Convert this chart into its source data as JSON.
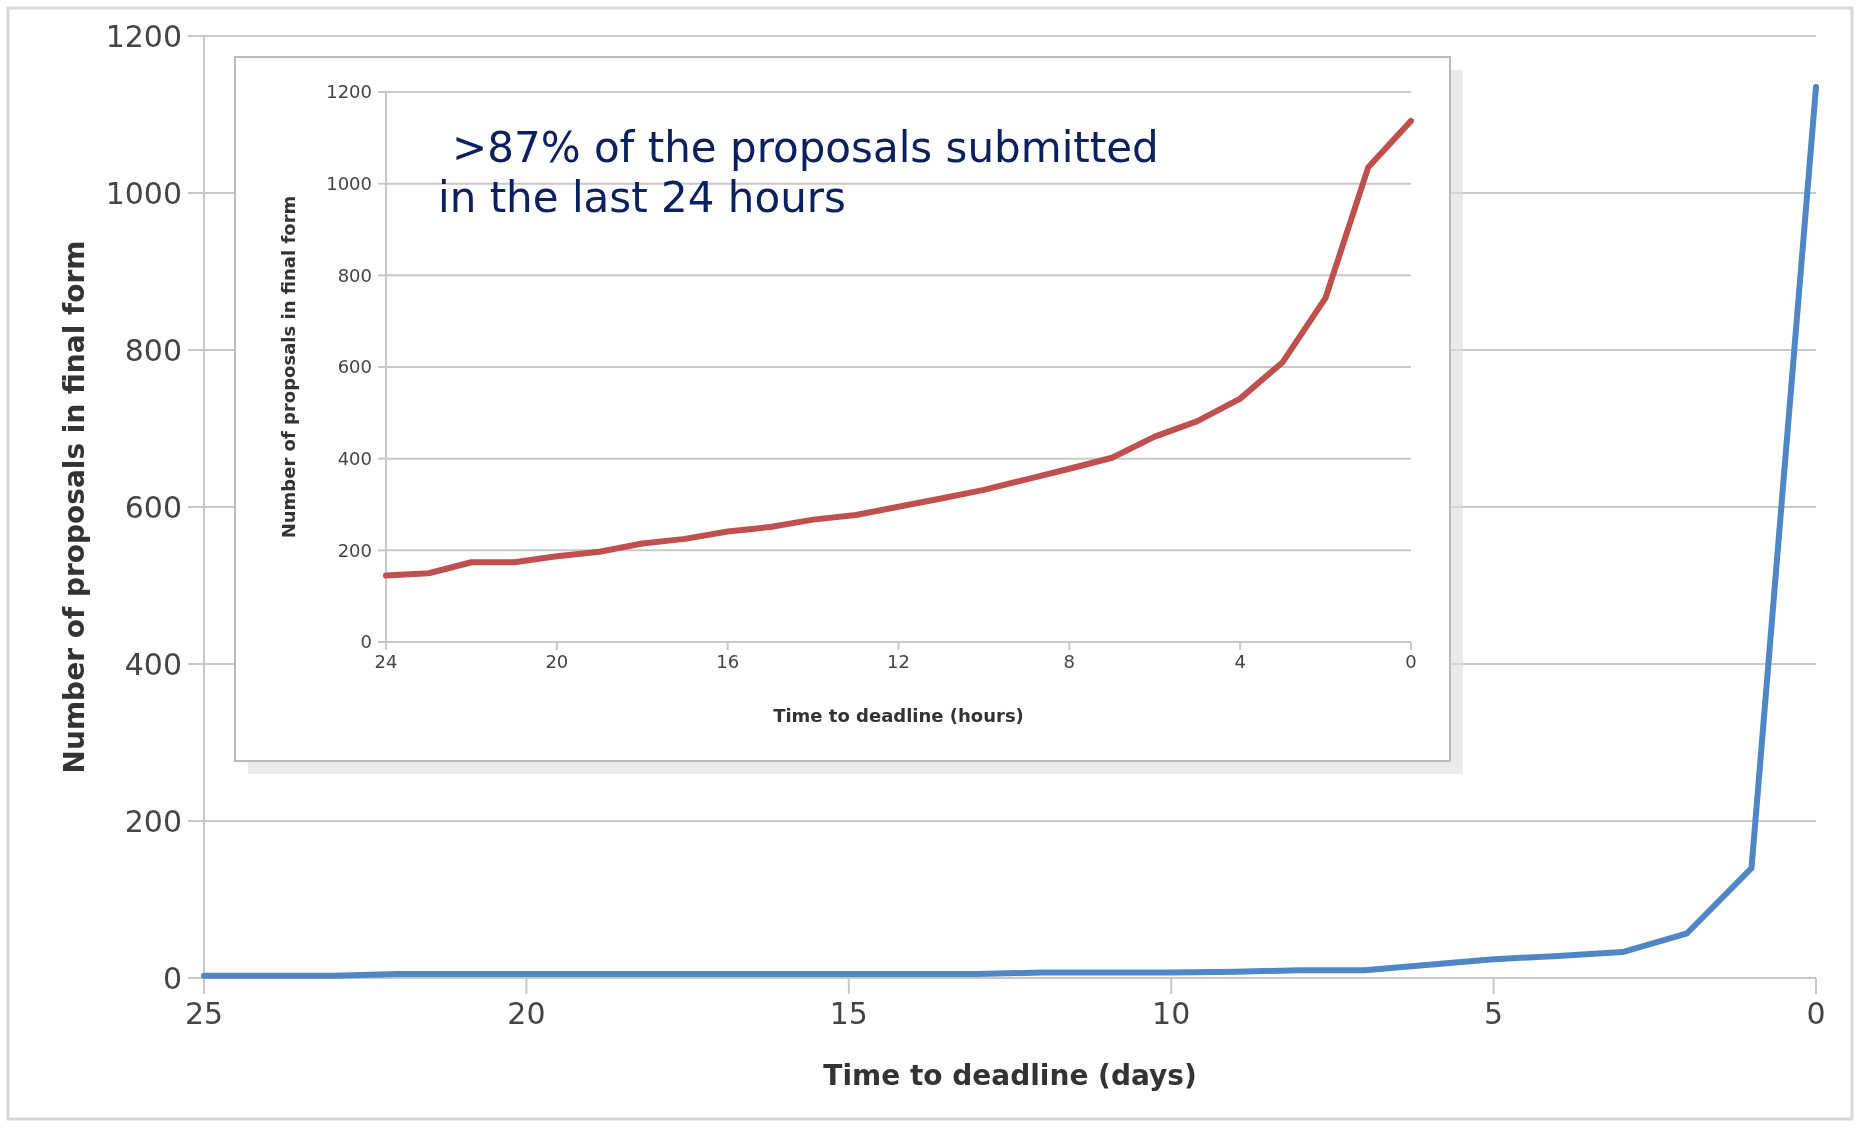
{
  "chart_data": [
    {
      "type": "line",
      "xlabel": "Time to deadline (days)",
      "ylabel": "Number of proposals in final form",
      "x": [
        25,
        24,
        23,
        22,
        21,
        20,
        19,
        18,
        17,
        16,
        15,
        14,
        13,
        12,
        11,
        10,
        9,
        8,
        7,
        6,
        5,
        4,
        3,
        2,
        1,
        0
      ],
      "xlim": [
        25,
        0
      ],
      "xticks": [
        25,
        20,
        15,
        10,
        5,
        0
      ],
      "ylim": [
        0,
        1200
      ],
      "yticks": [
        0,
        200,
        400,
        600,
        800,
        1000,
        1200
      ],
      "grid": "y",
      "series": [
        {
          "color": "#4f86c6",
          "values": [
            3,
            3,
            3,
            5,
            5,
            5,
            5,
            5,
            5,
            5,
            5,
            5,
            5,
            7,
            7,
            7,
            8,
            10,
            10,
            17,
            24,
            28,
            33,
            57,
            140,
            1135
          ]
        }
      ]
    },
    {
      "type": "line",
      "xlabel": "Time to deadline (hours)",
      "ylabel": "Number of proposals in final form",
      "x": [
        24,
        23,
        22,
        21,
        20,
        19,
        18,
        17,
        16,
        15,
        14,
        13,
        12,
        11,
        10,
        9,
        8,
        7,
        6,
        5,
        4,
        3,
        2,
        1,
        0
      ],
      "xlim": [
        24,
        0
      ],
      "xticks": [
        24,
        20,
        16,
        12,
        8,
        4,
        0
      ],
      "ylim": [
        0,
        1200
      ],
      "yticks": [
        0,
        200,
        400,
        600,
        800,
        1000,
        1200
      ],
      "grid": "y",
      "annotations": [
        ">87% of the proposals submitted\nin the last 24 hours"
      ],
      "series": [
        {
          "color": "#c0504d",
          "values": [
            145,
            150,
            174,
            174,
            187,
            197,
            215,
            225,
            241,
            251,
            267,
            277,
            295,
            313,
            332,
            355,
            378,
            402,
            448,
            482,
            531,
            611,
            751,
            1036,
            1137
          ]
        }
      ]
    }
  ]
}
